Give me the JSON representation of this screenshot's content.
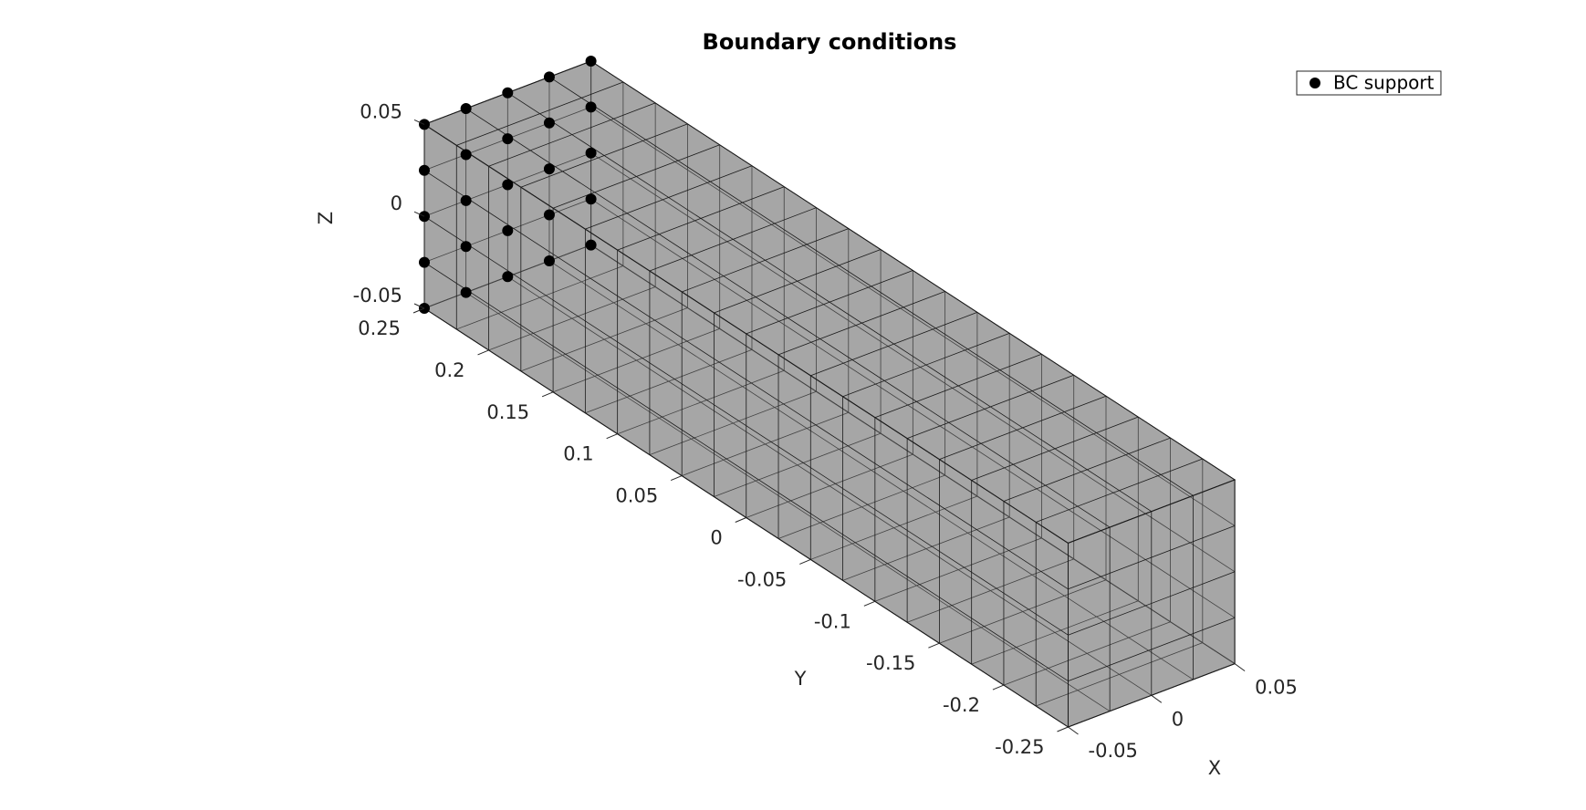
{
  "chart_data": {
    "type": "scatter3d",
    "title": "Boundary conditions",
    "xlabel": "X",
    "ylabel": "Y",
    "zlabel": "Z",
    "xlim": [
      -0.05,
      0.05
    ],
    "ylim": [
      -0.25,
      0.25
    ],
    "zlim": [
      -0.05,
      0.05
    ],
    "xticks": [
      -0.05,
      0,
      0.05
    ],
    "yticks": [
      -0.25,
      -0.2,
      -0.15,
      -0.1,
      -0.05,
      0,
      0.05,
      0.1,
      0.15,
      0.2,
      0.25
    ],
    "zticks": [
      -0.05,
      0,
      0.05
    ],
    "legend": "upper right",
    "series": [
      {
        "name": "BC support",
        "color": "#000000",
        "x": [
          -0.05,
          -0.05,
          -0.05,
          -0.05,
          -0.05,
          -0.025,
          -0.025,
          -0.025,
          -0.025,
          -0.025,
          0,
          0,
          0,
          0,
          0,
          0.025,
          0.025,
          0.025,
          0.025,
          0.025,
          0.05,
          0.05,
          0.05,
          0.05,
          0.05
        ],
        "y": [
          0.25,
          0.25,
          0.25,
          0.25,
          0.25,
          0.25,
          0.25,
          0.25,
          0.25,
          0.25,
          0.25,
          0.25,
          0.25,
          0.25,
          0.25,
          0.25,
          0.25,
          0.25,
          0.25,
          0.25,
          0.25,
          0.25,
          0.25,
          0.25,
          0.25
        ],
        "z": [
          -0.05,
          -0.025,
          0,
          0.025,
          0.05,
          -0.05,
          -0.025,
          0,
          0.025,
          0.05,
          -0.05,
          -0.025,
          0,
          0.025,
          0.05,
          -0.05,
          -0.025,
          0,
          0.025,
          0.05,
          -0.05,
          -0.025,
          0,
          0.025,
          0.05
        ]
      }
    ]
  }
}
